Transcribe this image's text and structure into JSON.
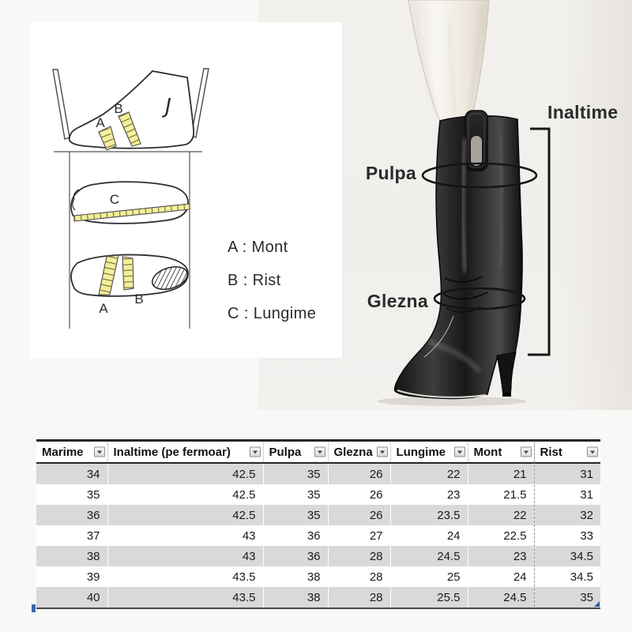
{
  "measure_card": {
    "letters": {
      "a": "A",
      "b": "B",
      "c": "C",
      "j": "J"
    },
    "legend": [
      "A : Mont",
      "B : Rist",
      "C : Lungime"
    ]
  },
  "boot_figure": {
    "pulpa": "Pulpa",
    "glezna": "Glezna",
    "inaltime": "Inaltime"
  },
  "size_table": {
    "columns": [
      "Marime",
      "Inaltime (pe fermoar)",
      "Pulpa",
      "Glezna",
      "Lungime",
      "Mont",
      "Rist"
    ],
    "rows": [
      [
        "34",
        "42.5",
        "35",
        "26",
        "22",
        "21",
        "31"
      ],
      [
        "35",
        "42.5",
        "35",
        "26",
        "23",
        "21.5",
        "31"
      ],
      [
        "36",
        "42.5",
        "35",
        "26",
        "23.5",
        "22",
        "32"
      ],
      [
        "37",
        "43",
        "36",
        "27",
        "24",
        "22.5",
        "33"
      ],
      [
        "38",
        "43",
        "36",
        "28",
        "24.5",
        "23",
        "34.5"
      ],
      [
        "39",
        "43.5",
        "38",
        "28",
        "25",
        "24",
        "34.5"
      ],
      [
        "40",
        "43.5",
        "38",
        "28",
        "25.5",
        "24.5",
        "35"
      ]
    ]
  },
  "colors": {
    "row_stripe": "#d9d9d9",
    "table_border": "#262626",
    "tape_yellow": "#f5ef9a",
    "handle_blue": "#2e5ea8",
    "panel_bg": "#f1efec"
  }
}
